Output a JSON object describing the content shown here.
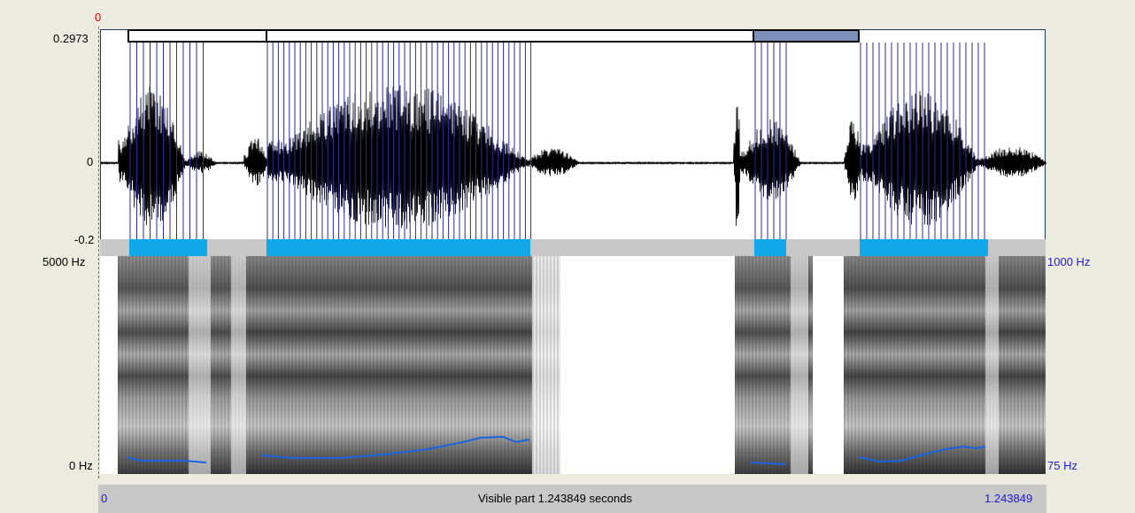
{
  "selection": {
    "start_label": "0",
    "end_time": ""
  },
  "waveform": {
    "max_label": "0.2973",
    "zero_label": "0",
    "min_label": "-0.2"
  },
  "spectrogram": {
    "top_freq_label": "5000 Hz",
    "bottom_freq_label": "0 Hz",
    "pitch_top_label": "1000 Hz",
    "pitch_bottom_label": "75 Hz"
  },
  "time_axis": {
    "start_label": "0",
    "visible_part_label": "Visible part 1.243849 seconds",
    "end_label": "1.243849"
  },
  "colors": {
    "background": "#ecebdf",
    "pulse_lines": "#2a2aa8",
    "voiced_bars": "#10a8e8",
    "unvoiced_bars": "#c8c8c8",
    "pitch_curve": "#1a64e0",
    "selected_interval": "#7a90b8"
  }
}
